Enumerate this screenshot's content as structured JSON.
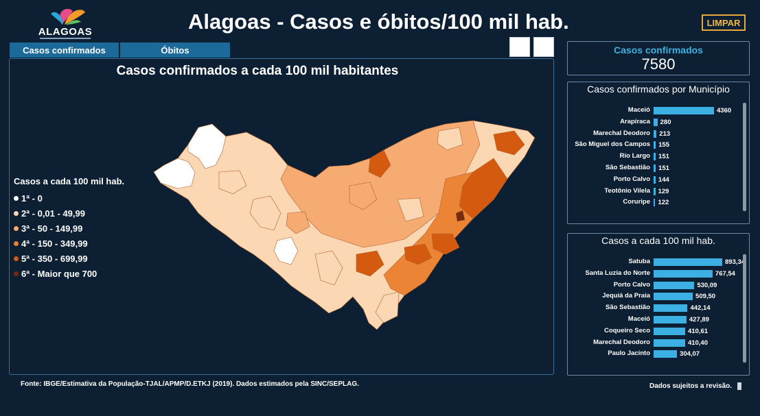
{
  "header": {
    "logo_text": "ALAGOAS",
    "title": "Alagoas - Casos e óbitos/100 mil hab.",
    "clear_label": "LIMPAR"
  },
  "tabs": [
    {
      "label": "Casos confirmados"
    },
    {
      "label": "Óbitos"
    }
  ],
  "map": {
    "title": "Casos confirmados a cada 100 mil habitantes",
    "legend_title": "Casos a cada 100 mil hab.",
    "legend": [
      {
        "label": "1ª - 0",
        "color": "#ffffff"
      },
      {
        "label": "2ª - 0,01 - 49,99",
        "color": "#fcd7b4"
      },
      {
        "label": "3ª - 50 - 149,99",
        "color": "#f6ab73"
      },
      {
        "label": "4ª - 150 - 349,99",
        "color": "#ec8435"
      },
      {
        "label": "5ª - 350 - 699,99",
        "color": "#d35a0f"
      },
      {
        "label": "6ª - Maior que 700",
        "color": "#7a2a0c"
      }
    ]
  },
  "kpi": {
    "label": "Casos confirmados",
    "value": "7580"
  },
  "cases_by_municipality": {
    "title": "Casos confirmados por Município",
    "max": 4360,
    "rows": [
      {
        "name": "Maceió",
        "value": 4360,
        "display": "4360"
      },
      {
        "name": "Arapiraca",
        "value": 280,
        "display": "280"
      },
      {
        "name": "Marechal Deodoro",
        "value": 213,
        "display": "213"
      },
      {
        "name": "São Miguel dos Campos",
        "value": 155,
        "display": "155"
      },
      {
        "name": "Rio Largo",
        "value": 151,
        "display": "151"
      },
      {
        "name": "São Sebastião",
        "value": 151,
        "display": "151"
      },
      {
        "name": "Porto Calvo",
        "value": 144,
        "display": "144"
      },
      {
        "name": "Teotônio Vilela",
        "value": 129,
        "display": "129"
      },
      {
        "name": "Coruripe",
        "value": 122,
        "display": "122"
      }
    ]
  },
  "cases_per_100k": {
    "title": "Casos a cada 100 mil hab.",
    "max": 893.34,
    "rows": [
      {
        "name": "Satuba",
        "value": 893.34,
        "display": "893,34"
      },
      {
        "name": "Santa Luzia do Norte",
        "value": 767.54,
        "display": "767,54"
      },
      {
        "name": "Porto Calvo",
        "value": 530.09,
        "display": "530,09"
      },
      {
        "name": "Jequiá da Praia",
        "value": 509.5,
        "display": "509,50"
      },
      {
        "name": "São Sebastião",
        "value": 442.14,
        "display": "442,14"
      },
      {
        "name": "Maceió",
        "value": 427.89,
        "display": "427,89"
      },
      {
        "name": "Coqueiro Seco",
        "value": 410.61,
        "display": "410,61"
      },
      {
        "name": "Marechal Deodoro",
        "value": 410.4,
        "display": "410,40"
      },
      {
        "name": "Paulo Jacinto",
        "value": 304.07,
        "display": "304,07"
      }
    ]
  },
  "footer": {
    "source": "Fonte: IBGE/Estimativa da População-TJAL/APMP/D.ETKJ (2019). Dados estimados pela SINC/SEPLAG.",
    "disclaimer": "Dados sujeitos a revisão."
  }
}
